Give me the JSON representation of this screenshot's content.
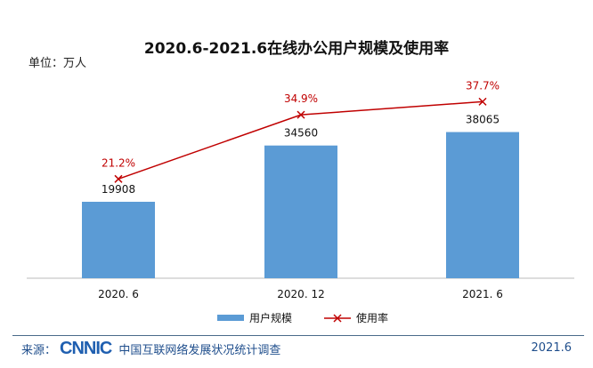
{
  "chart_data": {
    "type": "bar",
    "title": "2020.6-2021.6在线办公用户规模及使用率",
    "unit_label": "单位：万人",
    "categories": [
      "2020. 6",
      "2020. 12",
      "2021. 6"
    ],
    "series": [
      {
        "name": "用户规模",
        "type": "bar",
        "values": [
          19908,
          34560,
          38065
        ],
        "labels": [
          "19908",
          "34560",
          "38065"
        ],
        "color": "#5b9bd5"
      },
      {
        "name": "使用率",
        "type": "line",
        "values": [
          21.2,
          34.9,
          37.7
        ],
        "labels": [
          "21.2%",
          "34.9%",
          "37.7%"
        ],
        "color": "#c00000",
        "marker": "x"
      }
    ],
    "ylim": [
      0,
      50000
    ],
    "y2lim": [
      0,
      41
    ],
    "grid": false,
    "legend": "bottom"
  },
  "footer": {
    "source_label": "来源：",
    "logo": "CNNIC",
    "org": "中国互联网络发展状况统计调查",
    "date": "2021.6"
  }
}
